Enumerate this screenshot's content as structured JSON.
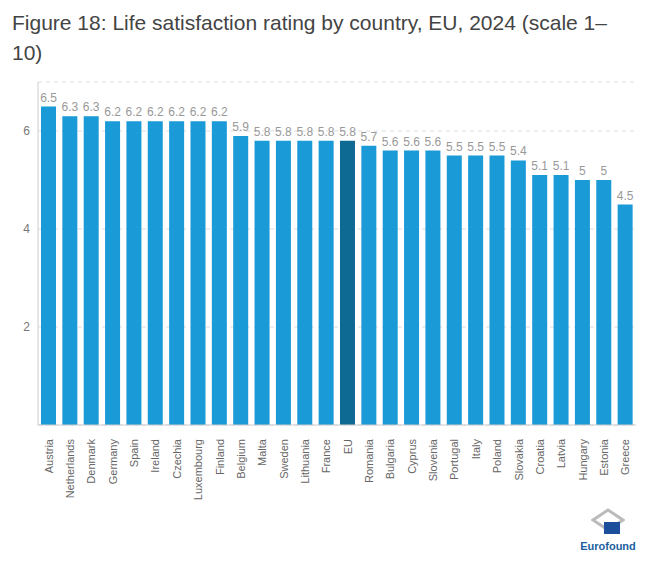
{
  "chart_data": {
    "type": "bar",
    "title": "Figure 18: Life satisfaction rating by country, EU, 2024 (scale 1–10)",
    "categories": [
      "Austria",
      "Netherlands",
      "Denmark",
      "Germany",
      "Spain",
      "Ireland",
      "Czechia",
      "Luxembourg",
      "Finland",
      "Belgium",
      "Malta",
      "Sweden",
      "Lithuania",
      "France",
      "EU",
      "Romania",
      "Bulgaria",
      "Cyprus",
      "Slovenia",
      "Portugal",
      "Italy",
      "Poland",
      "Slovakia",
      "Croatia",
      "Latvia",
      "Hungary",
      "Estonia",
      "Greece"
    ],
    "values": [
      6.5,
      6.3,
      6.3,
      6.2,
      6.2,
      6.2,
      6.2,
      6.2,
      6.2,
      5.9,
      5.8,
      5.8,
      5.8,
      5.8,
      5.8,
      5.7,
      5.6,
      5.6,
      5.6,
      5.5,
      5.5,
      5.5,
      5.4,
      5.1,
      5.1,
      5,
      5,
      4.5
    ],
    "colors": [
      "#1a9ad6",
      "#1a9ad6",
      "#1a9ad6",
      "#1a9ad6",
      "#1a9ad6",
      "#1a9ad6",
      "#1a9ad6",
      "#1a9ad6",
      "#1a9ad6",
      "#1a9ad6",
      "#1a9ad6",
      "#1a9ad6",
      "#1a9ad6",
      "#1a9ad6",
      "#0f6a93",
      "#1a9ad6",
      "#1a9ad6",
      "#1a9ad6",
      "#1a9ad6",
      "#1a9ad6",
      "#1a9ad6",
      "#1a9ad6",
      "#1a9ad6",
      "#1a9ad6",
      "#1a9ad6",
      "#1a9ad6",
      "#1a9ad6",
      "#1a9ad6"
    ],
    "ylim": [
      0,
      7
    ],
    "yticks": [
      2,
      4,
      6
    ],
    "grid": true,
    "data_labels": true,
    "annotations": [
      "Eurofound"
    ]
  }
}
